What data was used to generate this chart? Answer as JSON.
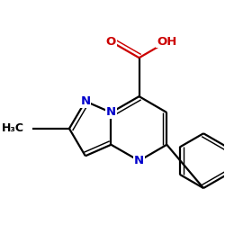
{
  "bg_color": "#ffffff",
  "bond_color": "#000000",
  "N_color": "#0000cc",
  "O_color": "#cc0000",
  "bond_width": 1.6,
  "font_size": 9.5,
  "xlim": [
    -2.8,
    3.5
  ],
  "ylim": [
    -2.8,
    2.8
  ]
}
